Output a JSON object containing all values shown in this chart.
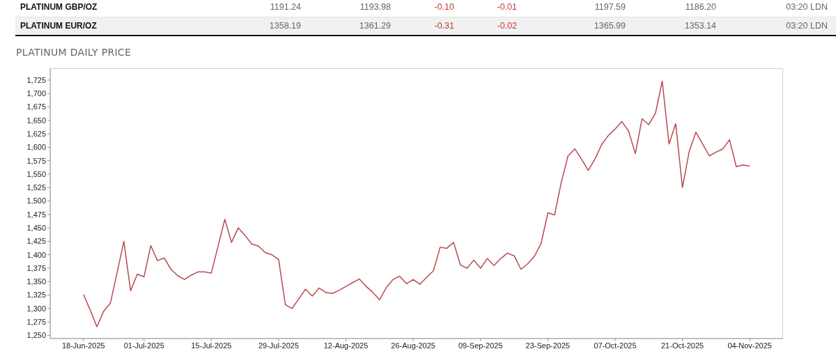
{
  "chart_data": {
    "type": "line",
    "title": "PLATINUM DAILY PRICE",
    "annotations": [
      "PLATINUM GBP/OZ",
      "1191.24",
      "1193.98",
      "-0.10",
      "-0.01",
      "1197.59",
      "1186.20",
      "03:20 LDN",
      "PLATINUM EUR/OZ",
      "1358.19",
      "1361.29",
      "-0.31",
      "-0.02",
      "1365.99",
      "1353.14",
      "03:20 LDN"
    ],
    "categories": [
      "18-Jun-2025",
      null,
      null,
      null,
      null,
      null,
      null,
      null,
      null,
      "01-Jul-2025",
      null,
      null,
      null,
      null,
      null,
      null,
      null,
      null,
      null,
      "15-Jul-2025",
      null,
      null,
      null,
      null,
      null,
      null,
      null,
      null,
      null,
      "29-Jul-2025",
      null,
      null,
      null,
      null,
      null,
      null,
      null,
      null,
      null,
      "12-Aug-2025",
      null,
      null,
      null,
      null,
      null,
      null,
      null,
      null,
      null,
      "26-Aug-2025",
      null,
      null,
      null,
      null,
      null,
      null,
      null,
      null,
      null,
      "09-Sep-2025",
      null,
      null,
      null,
      null,
      null,
      null,
      null,
      null,
      null,
      "23-Sep-2025",
      null,
      null,
      null,
      null,
      null,
      null,
      null,
      null,
      null,
      "07-Oct-2025",
      null,
      null,
      null,
      null,
      null,
      null,
      null,
      null,
      null,
      "21-Oct-2025",
      null,
      null,
      null,
      null,
      null,
      null,
      null,
      null,
      null,
      "04-Nov-2025"
    ],
    "series": [
      {
        "color": "#b94a50",
        "values": [
          1326,
          1297,
          1266,
          1295,
          1310,
          1367,
          1425,
          1333,
          1364,
          1359,
          1417,
          1389,
          1394,
          1373,
          1361,
          1354,
          1362,
          1368,
          1368,
          1366,
          1416,
          1466,
          1423,
          1450,
          1436,
          1420,
          1416,
          1404,
          1400,
          1391,
          1307,
          1300,
          1318,
          1336,
          1323,
          1338,
          1330,
          1328,
          1334,
          1341,
          1348,
          1355,
          1341,
          1330,
          1316,
          1339,
          1354,
          1360,
          1346,
          1354,
          1345,
          1358,
          1370,
          1414,
          1412,
          1423,
          1381,
          1375,
          1390,
          1375,
          1393,
          1380,
          1393,
          1403,
          1398,
          1373,
          1383,
          1397,
          1421,
          1478,
          1474,
          1535,
          1584,
          1597,
          1578,
          1557,
          1578,
          1605,
          1622,
          1634,
          1648,
          1630,
          1588,
          1653,
          1642,
          1664,
          1723,
          1606,
          1644,
          1525,
          1592,
          1628,
          1606,
          1584,
          1591,
          1597,
          1614,
          1564,
          1567,
          1565
        ]
      }
    ],
    "ylim": [
      1244,
      1747
    ],
    "yticks": [
      {
        "value": 1250,
        "label": "1,250"
      },
      {
        "value": 1275,
        "label": "1,275"
      },
      {
        "value": 1300,
        "label": "1,300"
      },
      {
        "value": 1325,
        "label": "1,325"
      },
      {
        "value": 1350,
        "label": "1,350"
      },
      {
        "value": 1375,
        "label": "1,375"
      },
      {
        "value": 1400,
        "label": "1,400"
      },
      {
        "value": 1425,
        "label": "1,425"
      },
      {
        "value": 1450,
        "label": "1,450"
      },
      {
        "value": 1475,
        "label": "1,475"
      },
      {
        "value": 1500,
        "label": "1,500"
      },
      {
        "value": 1525,
        "label": "1,525"
      },
      {
        "value": 1550,
        "label": "1,550"
      },
      {
        "value": 1575,
        "label": "1,575"
      },
      {
        "value": 1600,
        "label": "1,600"
      },
      {
        "value": 1625,
        "label": "1,625"
      },
      {
        "value": 1650,
        "label": "1,650"
      },
      {
        "value": 1675,
        "label": "1,675"
      },
      {
        "value": 1700,
        "label": "1,700"
      },
      {
        "value": 1725,
        "label": "1,725"
      }
    ],
    "marker": "none",
    "line_style": "solid"
  }
}
